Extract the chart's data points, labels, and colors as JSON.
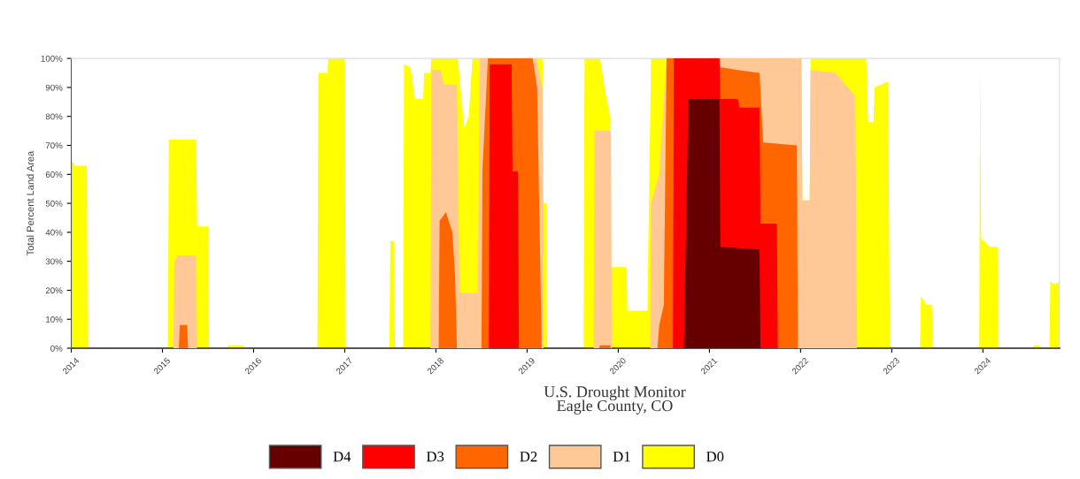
{
  "chart_data": {
    "type": "area",
    "title": "U.S. Drought Monitor\nEagle County, CO",
    "ylabel": "Total Percent Land Area",
    "legend": "bottom",
    "grid": false,
    "xlim": [
      2014,
      2024.84
    ],
    "xticks": [
      2014,
      2015,
      2016,
      2017,
      2018,
      2019,
      2020,
      2021,
      2022,
      2023,
      2024
    ],
    "ylim": [
      0,
      100
    ],
    "yticks": [
      {
        "value": 0,
        "label": "0%"
      },
      {
        "value": 10,
        "label": "10%"
      },
      {
        "value": 20,
        "label": "20%"
      },
      {
        "value": 30,
        "label": "30%"
      },
      {
        "value": 40,
        "label": "40%"
      },
      {
        "value": 50,
        "label": "50%"
      },
      {
        "value": 60,
        "label": "60%"
      },
      {
        "value": 70,
        "label": "70%"
      },
      {
        "value": 80,
        "label": "80%"
      },
      {
        "value": 90,
        "label": "90%"
      },
      {
        "value": 100,
        "label": "100%"
      }
    ],
    "series": [
      {
        "name": "D4",
        "color": "#660000",
        "x": [
          2020.72,
          2020.77,
          2021.11,
          2021.12,
          2021.55,
          2021.56
        ],
        "values": [
          0,
          86,
          86,
          35,
          34,
          0
        ]
      },
      {
        "name": "D3",
        "color": "#ff0000",
        "x": [
          2018.58,
          2018.59,
          2018.83,
          2018.84,
          2018.9,
          2018.91,
          2020.6,
          2020.61,
          2021.11,
          2021.12,
          2021.31,
          2021.33,
          2021.55,
          2021.56,
          2021.74,
          2021.75
        ],
        "values": [
          0,
          98,
          98,
          61,
          61,
          0,
          0,
          100,
          100,
          86,
          86,
          83,
          83,
          43,
          43,
          0
        ]
      },
      {
        "name": "D2",
        "color": "#ff6600",
        "x": [
          2015.18,
          2015.19,
          2015.27,
          2015.28,
          2018.03,
          2018.04,
          2018.11,
          2018.18,
          2018.21,
          2018.23,
          2018.5,
          2018.51,
          2018.57,
          2019.06,
          2019.11,
          2019.16,
          2019.79,
          2019.8,
          2019.91,
          2019.92,
          2020.43,
          2020.45,
          2020.5,
          2020.53,
          2021.11,
          2021.12,
          2021.31,
          2021.55,
          2021.59,
          2021.96,
          2021.97
        ],
        "values": [
          0,
          8,
          8,
          0,
          0,
          44,
          47,
          40,
          25,
          0,
          0,
          61,
          100,
          100,
          90,
          0,
          0,
          1,
          1,
          0,
          0,
          8,
          15,
          100,
          100,
          97,
          96,
          95,
          71,
          70,
          0
        ]
      },
      {
        "name": "D1",
        "color": "#ffc896",
        "x": [
          2015.12,
          2015.13,
          2015.17,
          2015.37,
          2015.38,
          2017.94,
          2017.95,
          2018.05,
          2018.09,
          2018.23,
          2018.26,
          2018.46,
          2018.48,
          2019.1,
          2019.17,
          2019.18,
          2019.73,
          2019.74,
          2019.92,
          2019.93,
          2020.35,
          2020.36,
          2020.45,
          2020.53,
          2022.01,
          2022.02,
          2022.1,
          2022.11,
          2022.38,
          2022.6,
          2022.62
        ],
        "values": [
          0,
          30,
          32,
          32,
          0,
          0,
          96,
          96,
          91,
          91,
          19,
          19,
          100,
          100,
          90,
          0,
          0,
          75,
          75,
          0,
          0,
          50,
          60,
          100,
          100,
          51,
          51,
          96,
          95,
          87,
          0
        ]
      },
      {
        "name": "D0",
        "color": "#ffff00",
        "x": [
          2014,
          2014.04,
          2014.17,
          2014.18,
          2015.06,
          2015.07,
          2015.37,
          2015.38,
          2015.5,
          2015.51,
          2015.71,
          2015.72,
          2015.89,
          2015.9,
          2016.7,
          2016.71,
          2016.81,
          2016.82,
          2017.0,
          2017.01,
          2017.49,
          2017.5,
          2017.54,
          2017.55,
          2017.64,
          2017.65,
          2017.72,
          2017.77,
          2017.86,
          2017.87,
          2017.94,
          2017.95,
          2018.24,
          2018.31,
          2018.36,
          2018.4,
          2019.17,
          2019.18,
          2019.21,
          2019.22,
          2019.62,
          2019.63,
          2019.8,
          2019.85,
          2019.91,
          2019.92,
          2020.09,
          2020.1,
          2020.32,
          2020.36,
          2022.01,
          2022.02,
          2022.1,
          2022.11,
          2022.72,
          2022.74,
          2022.8,
          2022.81,
          2022.96,
          2022.98,
          2023.31,
          2023.32,
          2023.38,
          2023.44,
          2023.45,
          2023.96,
          2023.97,
          2023.98,
          2024.07,
          2024.16,
          2024.17,
          2024.55,
          2024.56,
          2024.62,
          2024.63,
          2024.73,
          2024.74,
          2024.79,
          2024.84
        ],
        "values": [
          65,
          63,
          63,
          0,
          0,
          72,
          72,
          42,
          42,
          0,
          0,
          1,
          1,
          0,
          0,
          95,
          95,
          100,
          100,
          0,
          0,
          37,
          37,
          0,
          0,
          98,
          97,
          86,
          86,
          95,
          95,
          100,
          100,
          76,
          80,
          100,
          100,
          50,
          50,
          0,
          0,
          100,
          100,
          90,
          80,
          28,
          28,
          13,
          13,
          100,
          100,
          51,
          51,
          100,
          100,
          78,
          78,
          90,
          92,
          0,
          0,
          18,
          15,
          15,
          0,
          0,
          98,
          38,
          35,
          35,
          0,
          0,
          1,
          1,
          0,
          0,
          23,
          22,
          23
        ]
      }
    ]
  }
}
